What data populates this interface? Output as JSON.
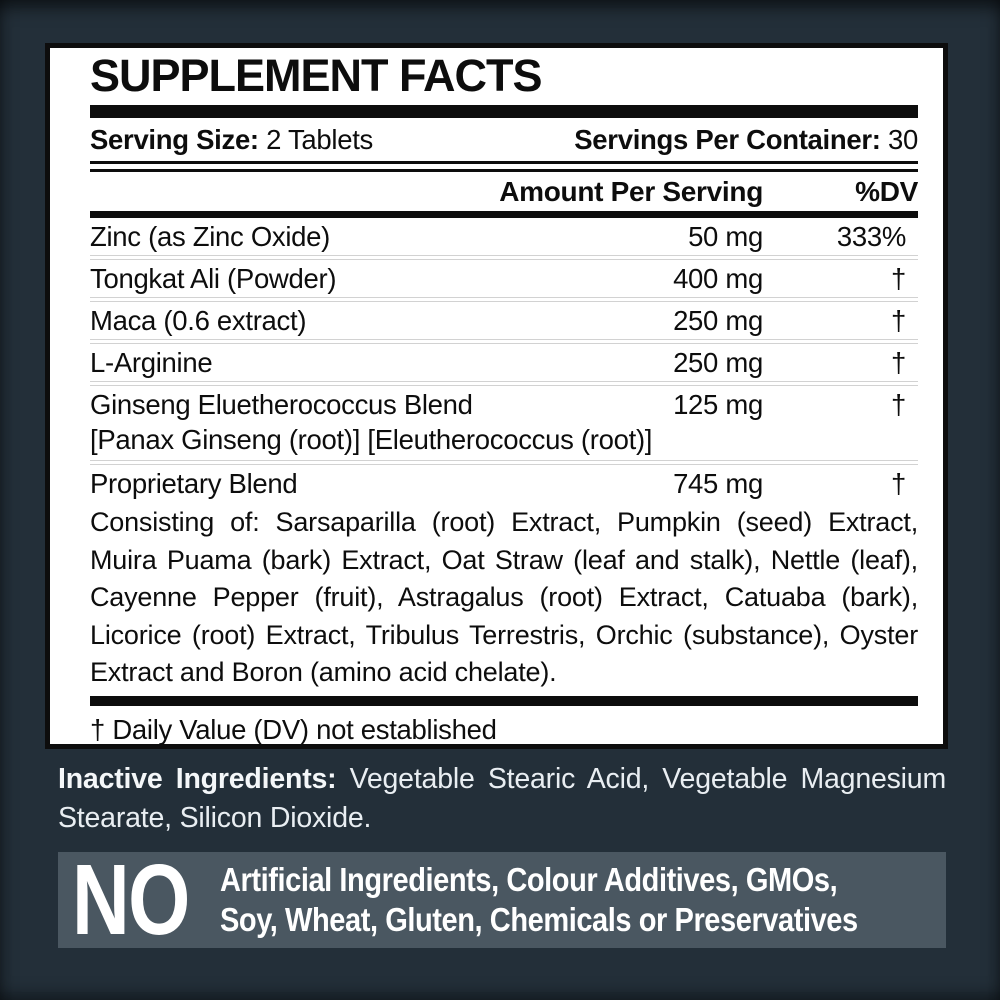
{
  "colors": {
    "background": "#232f39",
    "panel_bg": "#ffffff",
    "ink": "#0d0d0d",
    "no_box_bg": "#4a5761",
    "light_text": "#e9eef2",
    "separator": "#d2d2d2"
  },
  "panel": {
    "title": "SUPPLEMENT FACTS",
    "serving_size_label": "Serving Size:",
    "serving_size_value": "2 Tablets",
    "servings_per_container_label": "Servings Per Container:",
    "servings_per_container_value": "30",
    "header": {
      "amount": "Amount Per Serving",
      "dv": "%DV"
    },
    "rows": [
      {
        "name": "Zinc (as Zinc Oxide)",
        "amount": "50 mg",
        "dv": "333%"
      },
      {
        "name": "Tongkat Ali (Powder)",
        "amount": "400 mg",
        "dv": "†"
      },
      {
        "name": "Maca (0.6 extract)",
        "amount": "250 mg",
        "dv": "†"
      },
      {
        "name": "L-Arginine",
        "amount": "250 mg",
        "dv": "†"
      },
      {
        "name": "Ginseng Eluetherococcus Blend",
        "amount": "125 mg",
        "dv": "†",
        "subline": "[Panax Ginseng (root)] [Eleutherococcus (root)]"
      },
      {
        "name": "Proprietary Blend",
        "amount": "745 mg",
        "dv": "†"
      }
    ],
    "proprietary_detail": "Consisting of: Sarsaparilla (root) Extract, Pumpkin (seed) Extract, Muira Puama (bark) Extract, Oat Straw (leaf and stalk), Nettle (leaf), Cayenne Pepper (fruit), Astragalus (root) Extract, Catuaba (bark), Licorice (root) Extract, Tribulus Terrestris, Orchic (substance), Oyster Extract and Boron (amino acid chelate).",
    "footnote": "† Daily Value (DV) not established"
  },
  "inactive": {
    "label": "Inactive Ingredients:",
    "text": "Vegetable Stearic Acid, Vegetable Magnesium Stearate, Silicon Dioxide."
  },
  "no_box": {
    "word": "NO",
    "line1": "Artificial Ingredients, Colour Additives, GMOs,",
    "line2": "Soy, Wheat, Gluten, Chemicals or Preservatives"
  }
}
